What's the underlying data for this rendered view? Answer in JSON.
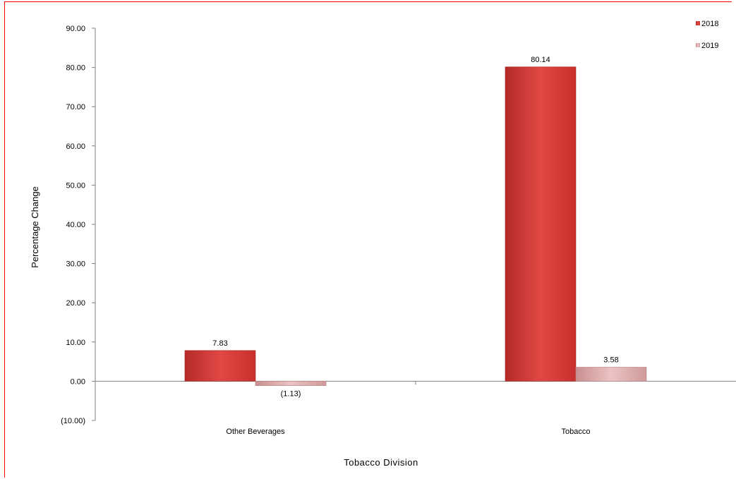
{
  "chart_data": {
    "type": "bar",
    "categories": [
      "Other Beverages",
      "Tobacco"
    ],
    "series": [
      {
        "name": "2018",
        "values": [
          7.83,
          80.14
        ],
        "labels": [
          "7.83",
          "80.14"
        ],
        "color": "#d63b38"
      },
      {
        "name": "2019",
        "values": [
          -1.13,
          3.58
        ],
        "labels": [
          "(1.13)",
          "3.58"
        ],
        "color": "#d9a3a3"
      }
    ],
    "xlabel": "Tobacco Division",
    "ylabel": "Percentage Change",
    "ylim": [
      -10,
      90
    ],
    "yticks": [
      -10,
      0,
      10,
      20,
      30,
      40,
      50,
      60,
      70,
      80,
      90
    ],
    "ytick_labels": [
      "(10.00)",
      "0.00",
      "10.00",
      "20.00",
      "30.00",
      "40.00",
      "50.00",
      "60.00",
      "70.00",
      "80.00",
      "90.00"
    ],
    "grid": false,
    "legend_position": "top-right",
    "border_color": "#ff0000"
  }
}
